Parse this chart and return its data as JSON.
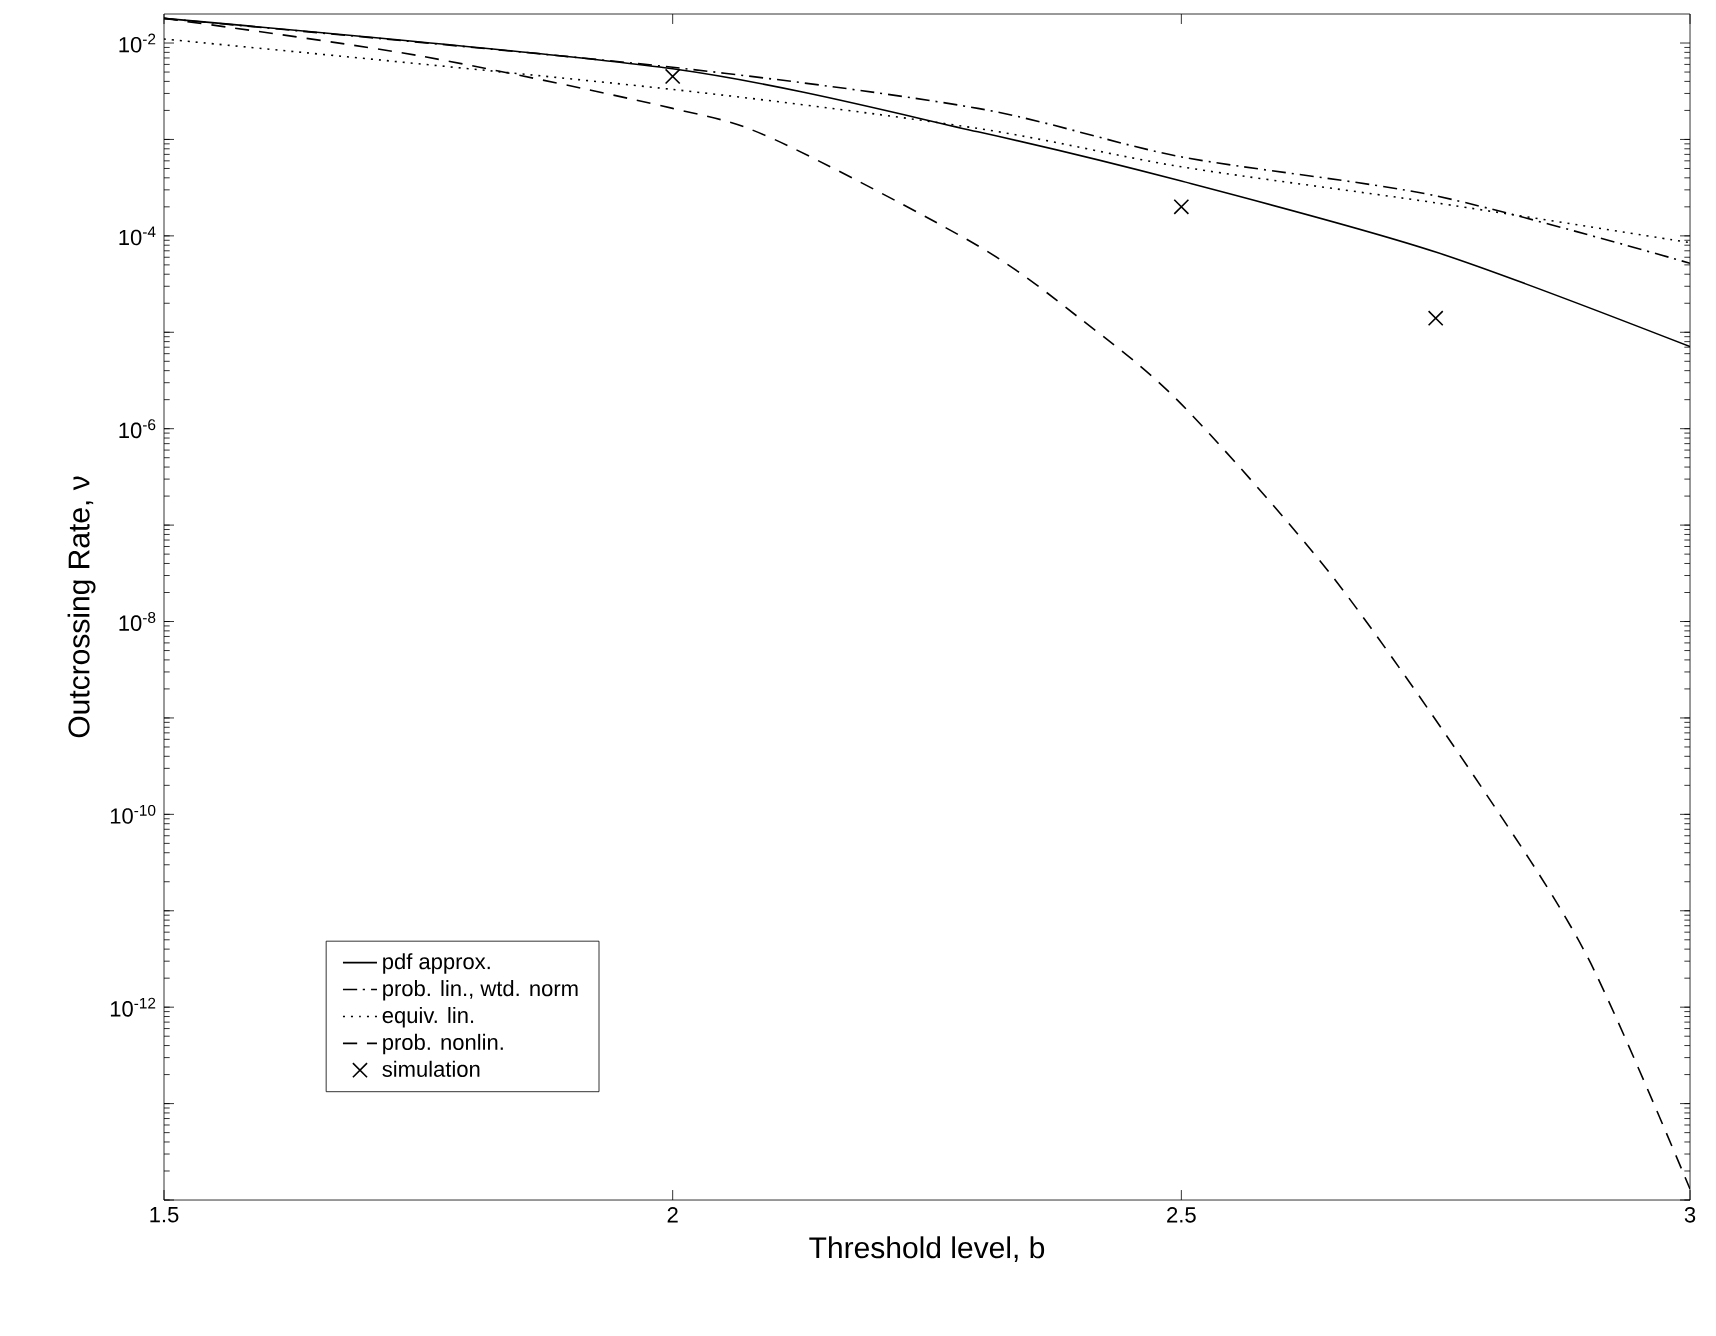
{
  "chart_data": {
    "type": "line",
    "xlabel": "Threshold level, b",
    "ylabel": "Outcrossing Rate, ν",
    "log": "y",
    "xlim": [
      1.5,
      3
    ],
    "ylim": [
      1e-14,
      0.02
    ],
    "xticks": [
      1.5,
      2,
      2.5,
      3
    ],
    "yticks": [
      {
        "value": 1e-14,
        "label": null
      },
      {
        "value": 1e-13,
        "label": null
      },
      {
        "value": 1e-12,
        "label": "10$^{-12}$"
      },
      {
        "value": 1e-11,
        "label": null
      },
      {
        "value": 1e-10,
        "label": "10$^{-10}$"
      },
      {
        "value": 1e-09,
        "label": null
      },
      {
        "value": 1e-08,
        "label": "10$^{-8}$"
      },
      {
        "value": 1e-07,
        "label": null
      },
      {
        "value": 1e-06,
        "label": "10$^{-6}$"
      },
      {
        "value": 1e-05,
        "label": null
      },
      {
        "value": 0.0001,
        "label": "10$^{-4}$"
      },
      {
        "value": 0.001,
        "label": null
      },
      {
        "value": 0.01,
        "label": "10$^{-2}$"
      }
    ],
    "legend": "bottom left",
    "series": [
      {
        "name": "pdf approx.",
        "color": "#000000",
        "line_style": "solid",
        "x": [
          1.5,
          2.0,
          2.3,
          2.5,
          2.75,
          3.0
        ],
        "values": [
          0.018,
          0.0054,
          0.0012,
          0.00037,
          6.8e-05,
          7.1e-06
        ]
      },
      {
        "name": "prob. lin., wtd. norm",
        "color": "#000000",
        "line_style": "dashdot",
        "x": [
          1.5,
          2.0,
          2.3,
          2.5,
          2.75,
          3.0
        ],
        "values": [
          0.018,
          0.0056,
          0.0021,
          0.00066,
          0.00026,
          5.2e-05
        ]
      },
      {
        "name": "equiv. lin.",
        "color": "#000000",
        "line_style": "dotted",
        "x": [
          1.5,
          2.0,
          2.3,
          2.5,
          2.75,
          3.0
        ],
        "values": [
          0.011,
          0.0033,
          0.0013,
          0.00052,
          0.00022,
          8.5e-05
        ]
      },
      {
        "name": "prob. nonlin.",
        "color": "#000000",
        "line_style": "dashed",
        "x": [
          1.5,
          1.75,
          2.0,
          2.1,
          2.3,
          2.4,
          2.5,
          2.65,
          2.8,
          2.9,
          3.0
        ],
        "values": [
          0.018,
          0.0074,
          0.0021,
          0.001,
          7.9e-05,
          1.4e-05,
          1.8e-06,
          2.8e-08,
          1.6e-10,
          3.2e-12,
          1.3e-14
        ]
      },
      {
        "name": "simulation",
        "type": "scatter",
        "marker": "cross",
        "color": "#000000",
        "x": [
          2.0,
          2.5,
          2.75
        ],
        "values": [
          0.0045,
          0.0002,
          1.4e-05
        ]
      }
    ]
  }
}
